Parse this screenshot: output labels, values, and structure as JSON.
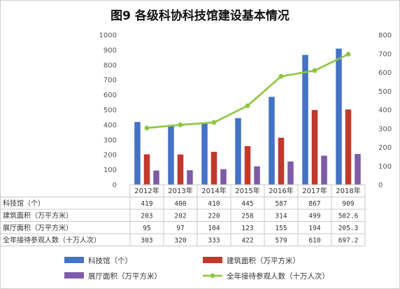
{
  "chart_data": {
    "type": "bar",
    "title": "图9 各级科协科技馆建设基本情况",
    "categories": [
      "2012年",
      "2013年",
      "2014年",
      "2015年",
      "2016年",
      "2017年",
      "2018年"
    ],
    "y_left": {
      "ylim": [
        0,
        1000
      ],
      "ticks": [
        0,
        100,
        200,
        300,
        400,
        500,
        600,
        700,
        800,
        900,
        1000
      ]
    },
    "y_right": {
      "ylim": [
        0,
        800
      ],
      "ticks": [
        0,
        100,
        200,
        300,
        400,
        500,
        600,
        700,
        800
      ]
    },
    "series": [
      {
        "name": "科技馆（个）",
        "table_label": "科技馆（个）",
        "type": "bar",
        "axis": "left",
        "color": "#4472C4",
        "values": [
          419,
          400,
          410,
          445,
          587,
          867,
          909
        ],
        "labels": [
          "419",
          "400",
          "410",
          "445",
          "587",
          "867",
          "909"
        ]
      },
      {
        "name": "建筑面积（万平方米）",
        "table_label": "建筑面积（万平方米）",
        "type": "bar",
        "axis": "left",
        "color": "#C0392B",
        "values": [
          203,
          202,
          220,
          258,
          314,
          499,
          502.6
        ],
        "labels": [
          "203",
          "202",
          "220",
          "258",
          "314",
          "499",
          "502.6"
        ]
      },
      {
        "name": "展厅面积（万平方米）",
        "table_label": "展厅面积（万平方米）",
        "type": "bar",
        "axis": "left",
        "color": "#7E5BA6",
        "values": [
          95,
          97,
          104,
          123,
          155,
          194,
          205.3
        ],
        "labels": [
          "95",
          "97",
          "104",
          "123",
          "155",
          "194",
          "205.3"
        ]
      },
      {
        "name": "全年接待参观人数（十万人次）",
        "table_label": "全年接待参观人数（十万人次）",
        "type": "line",
        "axis": "right",
        "color": "#8DC63F",
        "values": [
          303,
          320,
          333,
          422,
          579,
          610,
          697.2
        ],
        "labels": [
          "303",
          "320",
          "333",
          "422",
          "579",
          "610",
          "697.2"
        ]
      }
    ],
    "legend_position": "bottom",
    "grid": false
  }
}
